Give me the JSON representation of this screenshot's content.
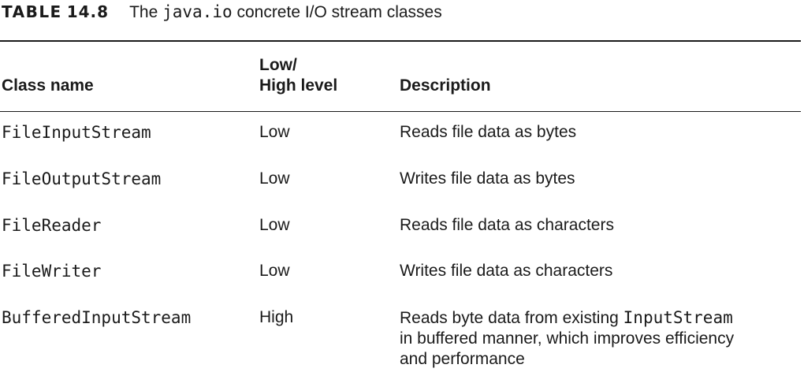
{
  "caption": {
    "label": "TABLE",
    "number": "14.8",
    "title_prefix": "The ",
    "title_code": "java.io",
    "title_suffix": " concrete I/O stream classes"
  },
  "table": {
    "headers": {
      "class_name": "Class name",
      "level_line1": "Low/",
      "level_line2": "High level",
      "description": "Description"
    },
    "rows": [
      {
        "class_name": "FileInputStream",
        "level": "Low",
        "description": "Reads file data as bytes"
      },
      {
        "class_name": "FileOutputStream",
        "level": "Low",
        "description": "Writes file data as bytes"
      },
      {
        "class_name": "FileReader",
        "level": "Low",
        "description": "Reads file data as characters"
      },
      {
        "class_name": "FileWriter",
        "level": "Low",
        "description": "Writes file data as characters"
      },
      {
        "class_name": "BufferedInputStream",
        "level": "High",
        "description_line1_prefix": "Reads byte data from existing ",
        "description_line1_code": "InputStream",
        "description_line2": "in buffered manner, which improves efficiency",
        "description_line3": "and performance"
      }
    ]
  }
}
